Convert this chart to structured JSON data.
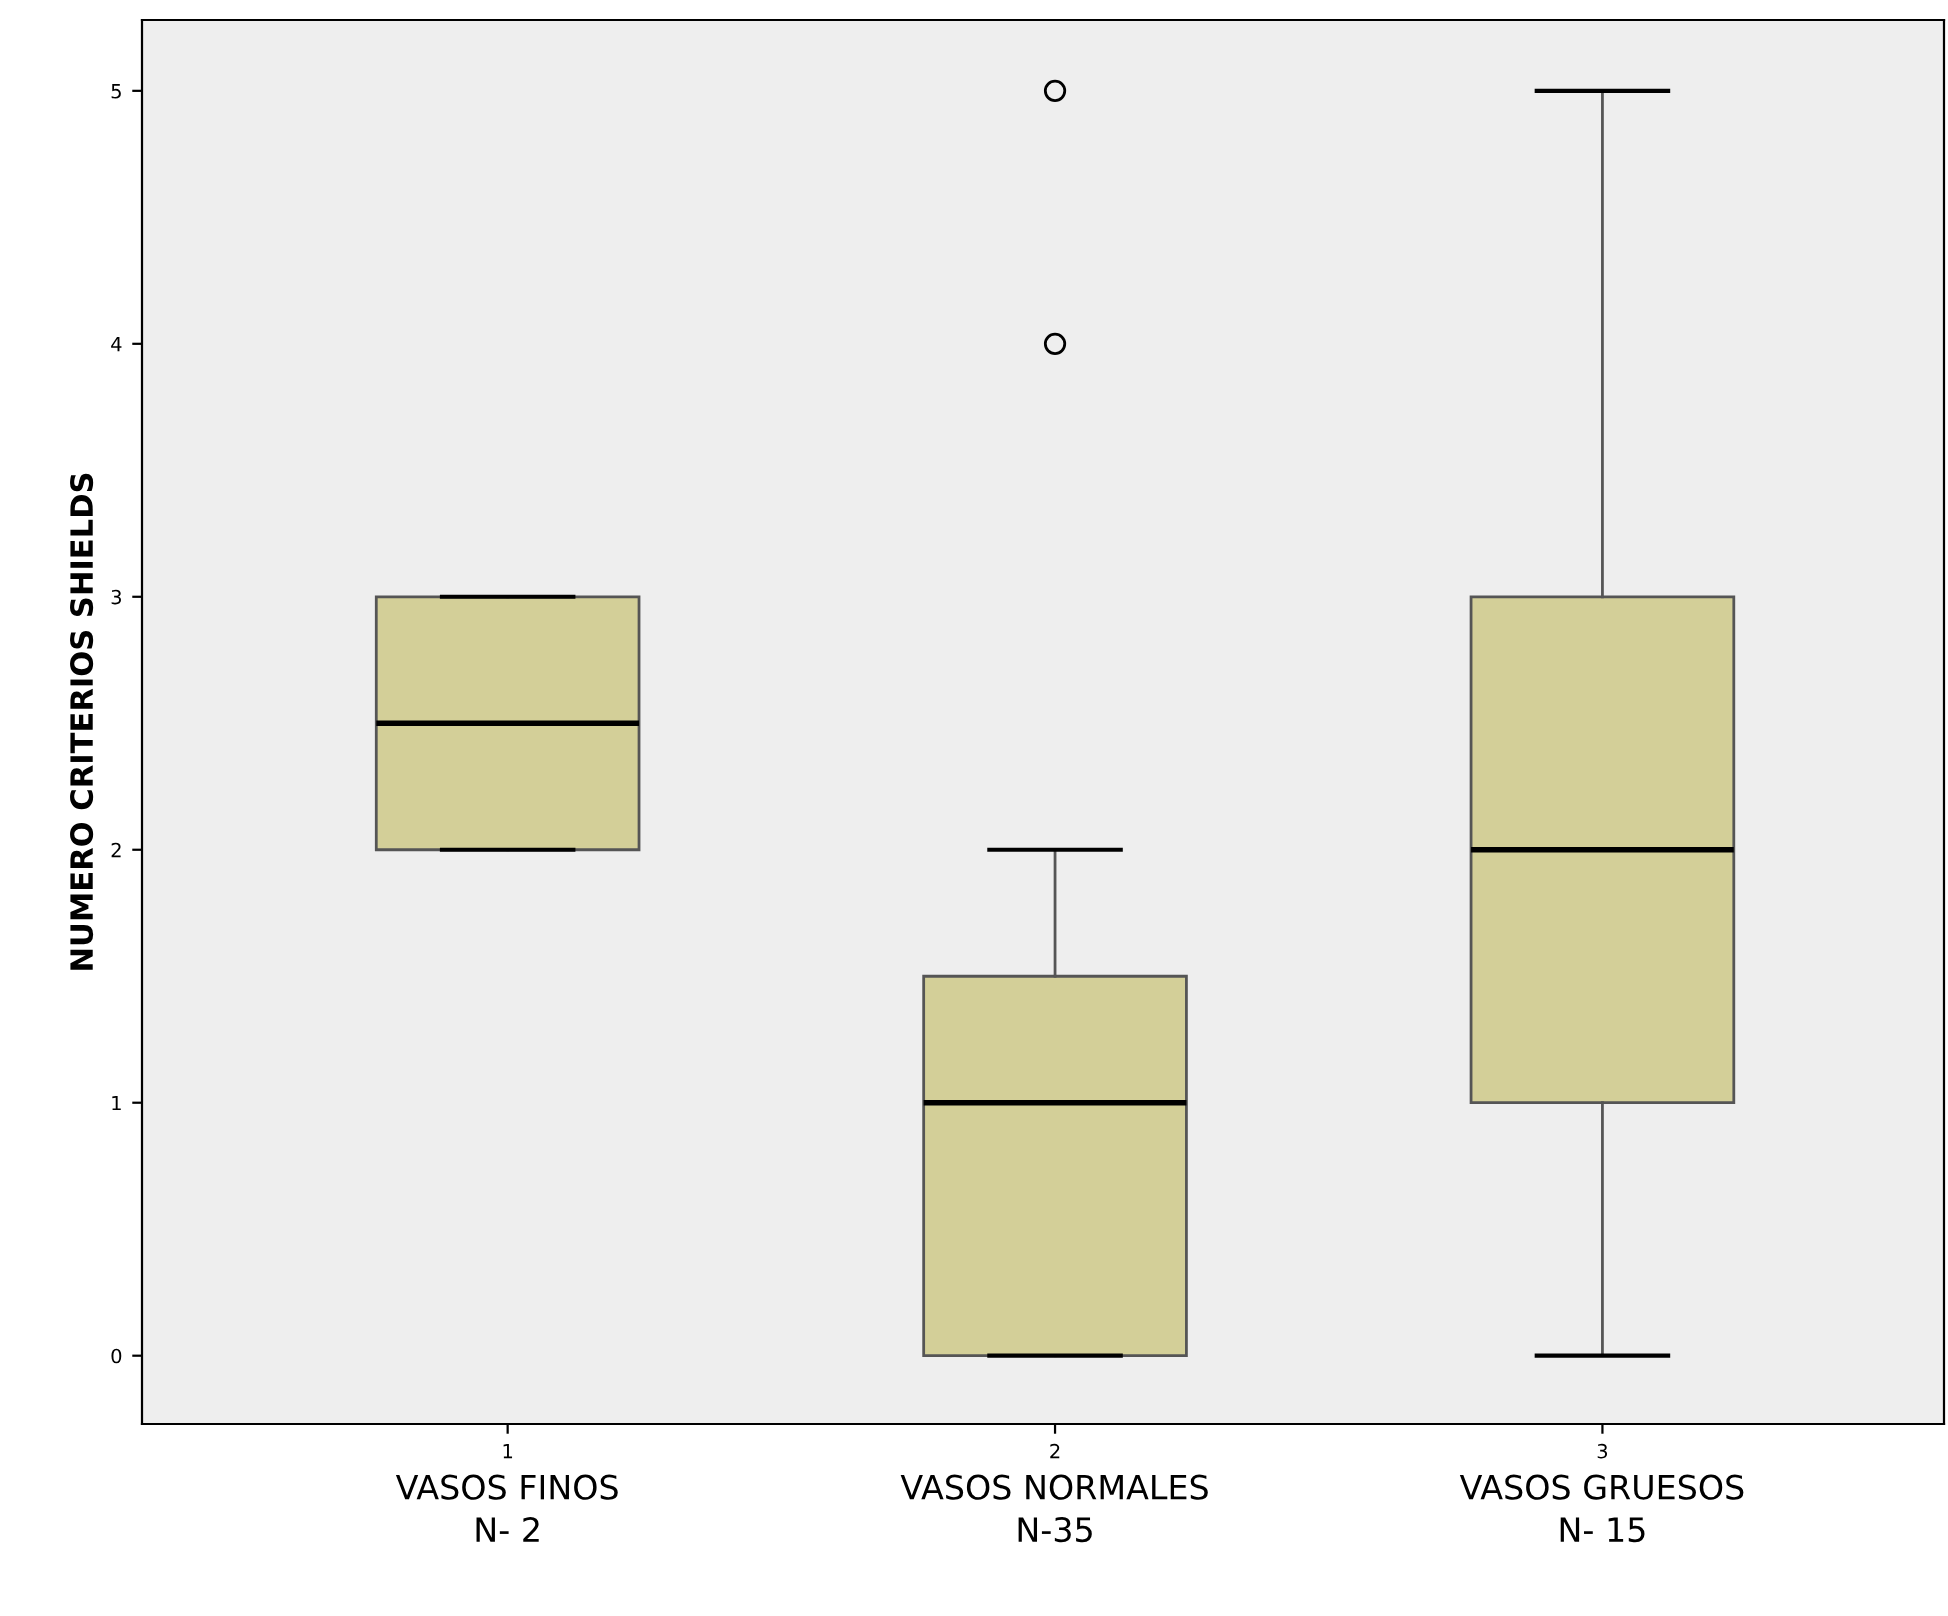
{
  "chart_data": {
    "type": "box",
    "ylabel": "NUMERO CRITERIOS SHIELDS",
    "categories": [
      "1",
      "2",
      "3"
    ],
    "boxes": [
      {
        "low": 2,
        "q1": 2,
        "median": 2.5,
        "q3": 3,
        "high": 3
      },
      {
        "low": 0,
        "q1": 0,
        "median": 1,
        "q3": 1.5,
        "high": 2,
        "outliers": [
          4,
          5
        ]
      },
      {
        "low": 0,
        "q1": 1,
        "median": 2,
        "q3": 3,
        "high": 5
      }
    ],
    "color": "#d3cf98",
    "ylim": [
      -0.27,
      5.28
    ],
    "yticks": [
      0,
      1,
      2,
      3,
      4,
      5
    ],
    "grid": false,
    "annotations": [
      "VASOS FINOS\nN- 2",
      "VASOS NORMALES\nN-35",
      "VASOS GRUESOS\nN- 15"
    ]
  }
}
